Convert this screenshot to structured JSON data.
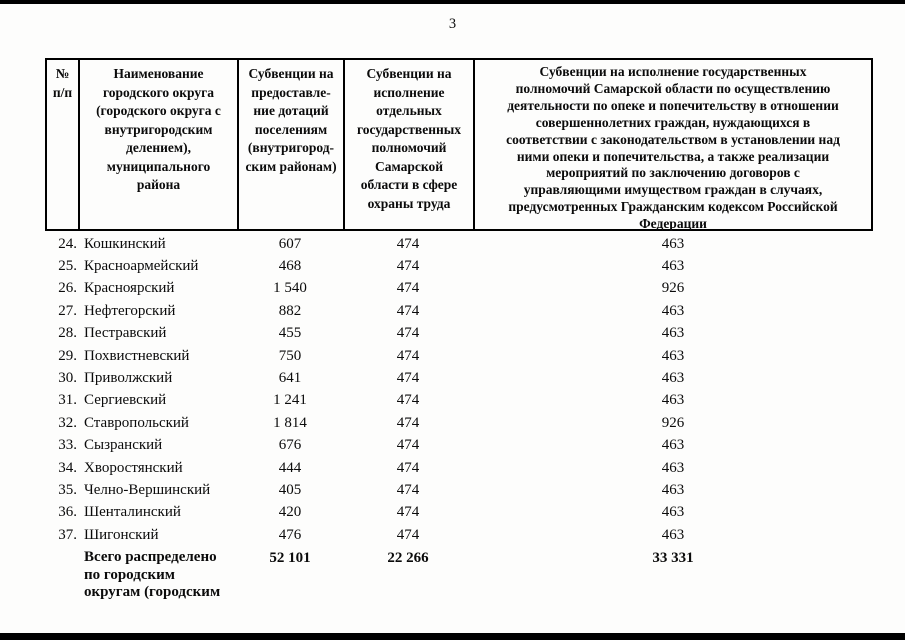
{
  "colors": {
    "ink": "#000000",
    "paper": "#fdfdfc"
  },
  "page": {
    "number": "3"
  },
  "table": {
    "header": {
      "col_num": "№\nп/п",
      "col_name": "Наименование\nгородского округа\n(городского округа с\nвнутригородским\nделением),\nмуниципального\nрайона",
      "col_dotations": "Субвенции на\nпредоставле-\nние дотаций\nпоселениям\n(внутригород-\nским районам)",
      "col_labor": "Субвенции на\nисполнение\nотдельных\nгосударственных\nполномочий\nСамарской\nобласти в сфере\nохраны труда",
      "col_guardianship": "Субвенции на исполнение государственных\nполномочий Самарской области по осуществлению\nдеятельности по опеке и попечительству в отношении\nсовершеннолетних граждан, нуждающихся в\nсоответствии с законодательством в установлении над\nними опеки и попечительства, а также реализации\nмероприятий по заключению договоров с\nуправляющими имуществом граждан в случаях,\nпредусмотренных Гражданским кодексом Российской\nФедерации"
    },
    "rows": [
      {
        "num": "24.",
        "name": "Кошкинский",
        "dotations": "607",
        "labor": "474",
        "guardianship": "463"
      },
      {
        "num": "25.",
        "name": "Красноармейский",
        "dotations": "468",
        "labor": "474",
        "guardianship": "463"
      },
      {
        "num": "26.",
        "name": "Красноярский",
        "dotations": "1 540",
        "labor": "474",
        "guardianship": "926"
      },
      {
        "num": "27.",
        "name": "Нефтегорский",
        "dotations": "882",
        "labor": "474",
        "guardianship": "463"
      },
      {
        "num": "28.",
        "name": "Пестравский",
        "dotations": "455",
        "labor": "474",
        "guardianship": "463"
      },
      {
        "num": "29.",
        "name": "Похвистневский",
        "dotations": "750",
        "labor": "474",
        "guardianship": "463"
      },
      {
        "num": "30.",
        "name": "Приволжский",
        "dotations": "641",
        "labor": "474",
        "guardianship": "463"
      },
      {
        "num": "31.",
        "name": "Сергиевский",
        "dotations": "1 241",
        "labor": "474",
        "guardianship": "463"
      },
      {
        "num": "32.",
        "name": "Ставропольский",
        "dotations": "1 814",
        "labor": "474",
        "guardianship": "926"
      },
      {
        "num": "33.",
        "name": "Сызранский",
        "dotations": "676",
        "labor": "474",
        "guardianship": "463"
      },
      {
        "num": "34.",
        "name": "Хворостянский",
        "dotations": "444",
        "labor": "474",
        "guardianship": "463"
      },
      {
        "num": "35.",
        "name": "Челно-Вершинский",
        "dotations": "405",
        "labor": "474",
        "guardianship": "463"
      },
      {
        "num": "36.",
        "name": "Шенталинский",
        "dotations": "420",
        "labor": "474",
        "guardianship": "463"
      },
      {
        "num": "37.",
        "name": "Шигонский",
        "dotations": "476",
        "labor": "474",
        "guardianship": "463"
      }
    ],
    "total": {
      "label": "Всего распределено\nпо городским\nокругам (городским",
      "dotations": "52 101",
      "labor": "22 266",
      "guardianship": "33 331"
    }
  }
}
